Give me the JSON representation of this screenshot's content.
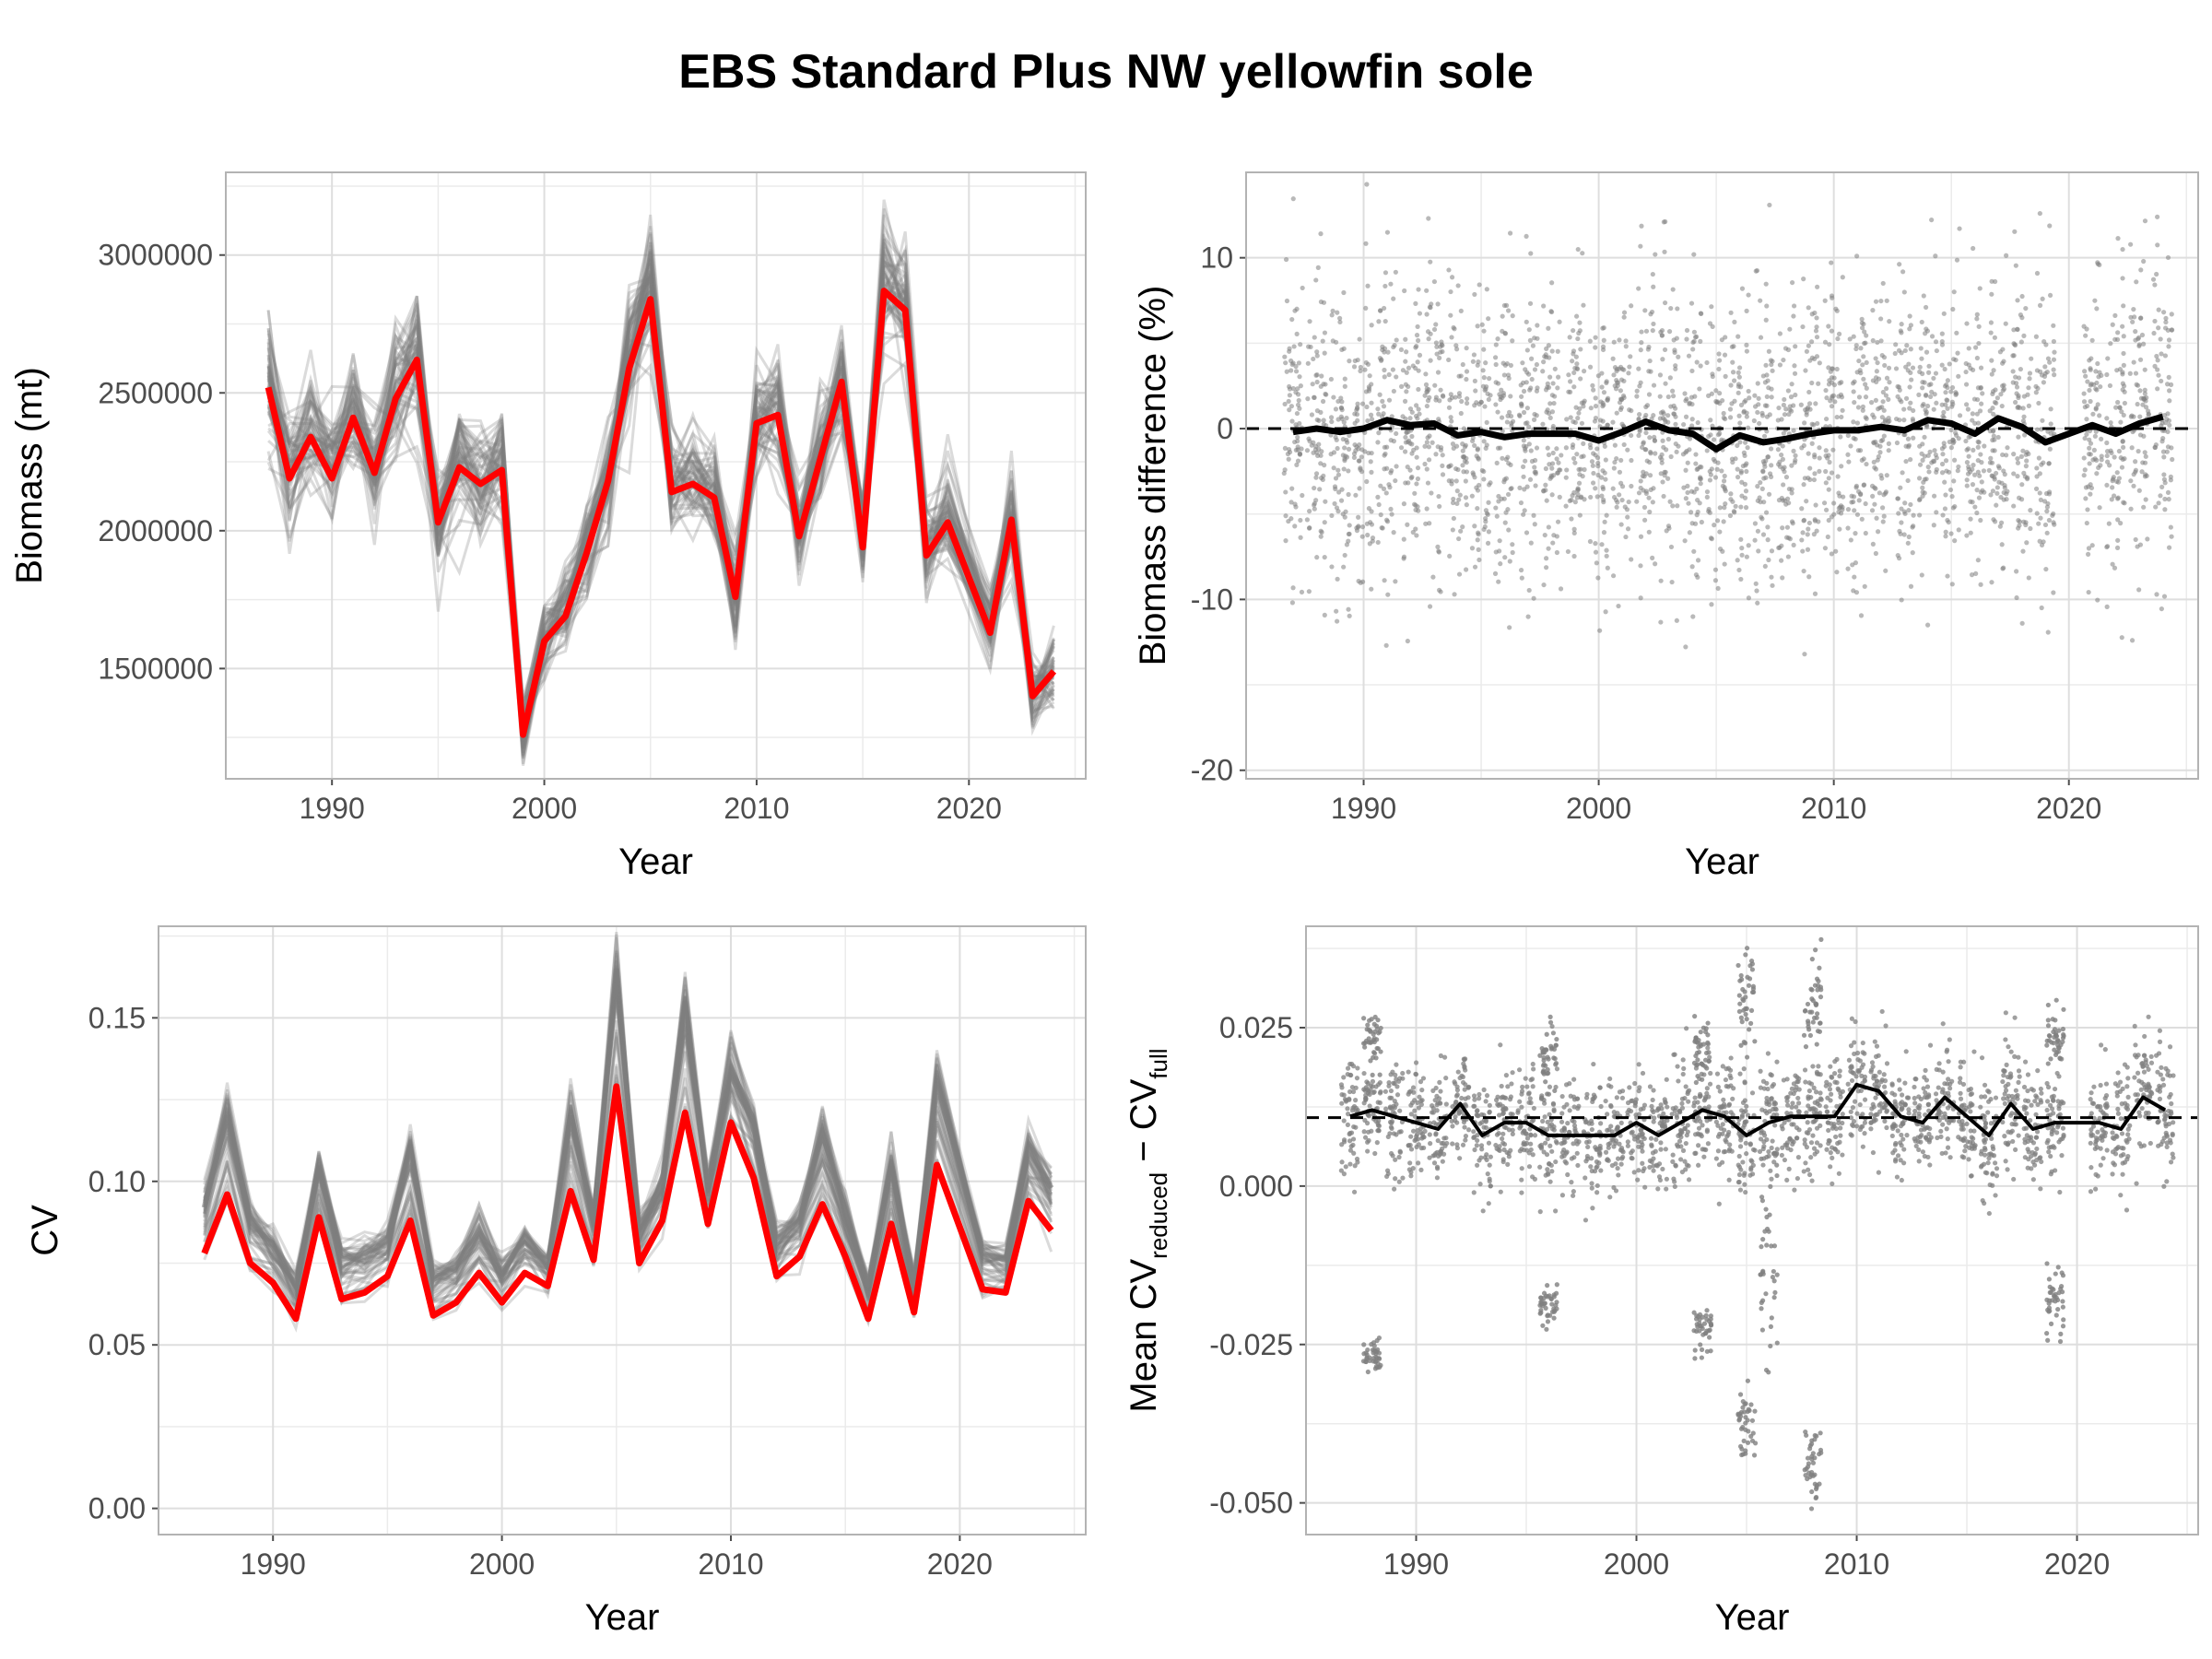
{
  "title": "EBS Standard Plus NW yellowfin sole",
  "colors": {
    "replicate": "#7f7f7f",
    "full_survey": "#ff0000",
    "mean": "#000000",
    "points": "#808080",
    "grid": "#ebebeb",
    "panel_border": "#b3b3b3"
  },
  "chart_data": [
    {
      "id": "biomass",
      "type": "line",
      "xlabel": "Year",
      "ylabel": "Biomass (mt)",
      "xlim": [
        1985,
        2025.5
      ],
      "ylim": [
        1100000,
        3300000
      ],
      "x_ticks": [
        1990,
        2000,
        2010,
        2020
      ],
      "x_tick_labels": [
        "1990",
        "2000",
        "2010",
        "2020"
      ],
      "y_ticks": [
        1500000,
        2000000,
        2500000,
        3000000
      ],
      "y_tick_labels": [
        "1500000",
        "2000000",
        "2500000",
        "3000000"
      ],
      "grid": true,
      "x": [
        1987,
        1988,
        1989,
        1990,
        1991,
        1992,
        1993,
        1994,
        1995,
        1996,
        1997,
        1998,
        1999,
        2000,
        2001,
        2002,
        2003,
        2004,
        2005,
        2006,
        2007,
        2008,
        2009,
        2010,
        2011,
        2012,
        2013,
        2014,
        2015,
        2016,
        2017,
        2018,
        2019,
        2021,
        2022,
        2023,
        2024
      ],
      "series": [
        {
          "role": "full",
          "color": "#ff0000",
          "values": [
            2520000,
            2190000,
            2340000,
            2190000,
            2410000,
            2210000,
            2480000,
            2620000,
            2030000,
            2230000,
            2170000,
            2220000,
            1260000,
            1600000,
            1690000,
            1920000,
            2180000,
            2590000,
            2840000,
            2140000,
            2170000,
            2120000,
            1760000,
            2390000,
            2420000,
            1980000,
            2260000,
            2540000,
            1940000,
            2870000,
            2800000,
            1910000,
            2030000,
            1630000,
            2040000,
            1400000,
            1490000
          ]
        }
      ],
      "replicates": {
        "count": 60,
        "color": "#7f7f7f",
        "note_relative_sd": 0.045
      }
    },
    {
      "id": "biomass_diff",
      "type": "scatter",
      "xlabel": "Year",
      "ylabel": "Biomass difference (%)",
      "xlim": [
        1985,
        2025.5
      ],
      "ylim": [
        -20.5,
        15
      ],
      "x_ticks": [
        1990,
        2000,
        2010,
        2020
      ],
      "x_tick_labels": [
        "1990",
        "2000",
        "2010",
        "2020"
      ],
      "y_ticks": [
        -20,
        -10,
        0,
        10
      ],
      "y_tick_labels": [
        "-20",
        "-10",
        "0",
        "10"
      ],
      "grid": true,
      "reference_line": 0,
      "x": [
        1987,
        1988,
        1989,
        1990,
        1991,
        1992,
        1993,
        1994,
        1995,
        1996,
        1997,
        1998,
        1999,
        2000,
        2001,
        2002,
        2003,
        2004,
        2005,
        2006,
        2007,
        2008,
        2009,
        2010,
        2011,
        2012,
        2013,
        2014,
        2015,
        2016,
        2017,
        2018,
        2019,
        2021,
        2022,
        2023,
        2024
      ],
      "mean": [
        -0.2,
        0.0,
        -0.2,
        0.0,
        0.5,
        0.2,
        0.3,
        -0.4,
        -0.2,
        -0.5,
        -0.3,
        -0.3,
        -0.3,
        -0.7,
        -0.2,
        0.4,
        -0.1,
        -0.3,
        -1.2,
        -0.4,
        -0.8,
        -0.6,
        -0.3,
        -0.1,
        -0.1,
        0.1,
        -0.1,
        0.5,
        0.3,
        -0.3,
        0.6,
        0.1,
        -0.8,
        0.2,
        -0.3,
        0.3,
        0.7
      ],
      "point_sd": 4.2,
      "points_per_year": 80
    },
    {
      "id": "cv",
      "type": "line",
      "xlabel": "Year",
      "ylabel": "CV",
      "xlim": [
        1985,
        2025.5
      ],
      "ylim": [
        -0.008,
        0.178
      ],
      "x_ticks": [
        1990,
        2000,
        2010,
        2020
      ],
      "x_tick_labels": [
        "1990",
        "2000",
        "2010",
        "2020"
      ],
      "y_ticks": [
        0,
        0.05,
        0.1,
        0.15
      ],
      "y_tick_labels": [
        "0.00",
        "0.05",
        "0.10",
        "0.15"
      ],
      "grid": true,
      "x": [
        1987,
        1988,
        1989,
        1990,
        1991,
        1992,
        1993,
        1994,
        1995,
        1996,
        1997,
        1998,
        1999,
        2000,
        2001,
        2002,
        2003,
        2004,
        2005,
        2006,
        2007,
        2008,
        2009,
        2010,
        2011,
        2012,
        2013,
        2014,
        2015,
        2016,
        2017,
        2018,
        2019,
        2021,
        2022,
        2023,
        2024
      ],
      "series": [
        {
          "role": "full",
          "color": "#ff0000",
          "values": [
            0.078,
            0.096,
            0.075,
            0.069,
            0.058,
            0.089,
            0.064,
            0.066,
            0.071,
            0.088,
            0.059,
            0.063,
            0.072,
            0.063,
            0.072,
            0.068,
            0.097,
            0.076,
            0.129,
            0.075,
            0.088,
            0.121,
            0.087,
            0.118,
            0.101,
            0.071,
            0.077,
            0.093,
            0.077,
            0.058,
            0.087,
            0.06,
            0.105,
            0.067,
            0.066,
            0.094,
            0.085
          ]
        },
        {
          "role": "reduced_mean",
          "color": "#7f7f7f",
          "values": [
            0.092,
            0.12,
            0.088,
            0.08,
            0.068,
            0.104,
            0.076,
            0.078,
            0.082,
            0.11,
            0.07,
            0.074,
            0.085,
            0.072,
            0.083,
            0.075,
            0.12,
            0.088,
            0.165,
            0.085,
            0.1,
            0.155,
            0.098,
            0.135,
            0.118,
            0.082,
            0.088,
            0.115,
            0.09,
            0.068,
            0.105,
            0.068,
            0.13,
            0.078,
            0.076,
            0.11,
            0.098
          ]
        }
      ],
      "replicates": {
        "count": 50,
        "color": "#7f7f7f"
      }
    },
    {
      "id": "cv_diff",
      "type": "scatter",
      "xlabel": "Year",
      "ylabel_parts": [
        "Mean CV",
        "reduced",
        " − CV",
        "full"
      ],
      "xlim": [
        1985,
        2025.5
      ],
      "ylim": [
        -0.055,
        0.041
      ],
      "x_ticks": [
        1990,
        2000,
        2010,
        2020
      ],
      "x_tick_labels": [
        "1990",
        "2000",
        "2010",
        "2020"
      ],
      "y_ticks": [
        -0.05,
        -0.025,
        0,
        0.025
      ],
      "y_tick_labels": [
        "-0.050",
        "-0.025",
        "0.000",
        "0.025"
      ],
      "grid": true,
      "reference_line": 0.0108,
      "x": [
        1987,
        1988,
        1989,
        1990,
        1991,
        1992,
        1993,
        1994,
        1995,
        1996,
        1997,
        1998,
        1999,
        2000,
        2001,
        2002,
        2003,
        2004,
        2005,
        2006,
        2007,
        2008,
        2009,
        2010,
        2011,
        2012,
        2013,
        2014,
        2015,
        2016,
        2017,
        2018,
        2019,
        2021,
        2022,
        2023,
        2024
      ],
      "mean": [
        0.011,
        0.012,
        0.011,
        0.01,
        0.009,
        0.013,
        0.008,
        0.01,
        0.01,
        0.008,
        0.008,
        0.008,
        0.008,
        0.01,
        0.008,
        0.01,
        0.012,
        0.011,
        0.008,
        0.01,
        0.011,
        0.011,
        0.011,
        0.016,
        0.015,
        0.011,
        0.01,
        0.014,
        0.011,
        0.008,
        0.013,
        0.009,
        0.01,
        0.01,
        0.009,
        0.014,
        0.012
      ],
      "clusters": [
        {
          "year": 1988,
          "center": 0.023,
          "sd": 0.003
        },
        {
          "year": 1988,
          "center": -0.027,
          "sd": 0.0015
        },
        {
          "year": 1996,
          "center": 0.02,
          "sd": 0.003
        },
        {
          "year": 1996,
          "center": -0.019,
          "sd": 0.0015
        },
        {
          "year": 2003,
          "center": 0.021,
          "sd": 0.003
        },
        {
          "year": 2003,
          "center": -0.023,
          "sd": 0.002
        },
        {
          "year": 2005,
          "center": 0.03,
          "sd": 0.004
        },
        {
          "year": 2005,
          "center": -0.038,
          "sd": 0.003
        },
        {
          "year": 2006,
          "center": -0.012,
          "sd": 0.008
        },
        {
          "year": 2008,
          "center": 0.029,
          "sd": 0.004
        },
        {
          "year": 2008,
          "center": -0.044,
          "sd": 0.003
        },
        {
          "year": 2019,
          "center": 0.024,
          "sd": 0.002
        },
        {
          "year": 2019,
          "center": -0.018,
          "sd": 0.003
        }
      ],
      "point_sd": 0.0045,
      "points_per_year": 60
    }
  ]
}
